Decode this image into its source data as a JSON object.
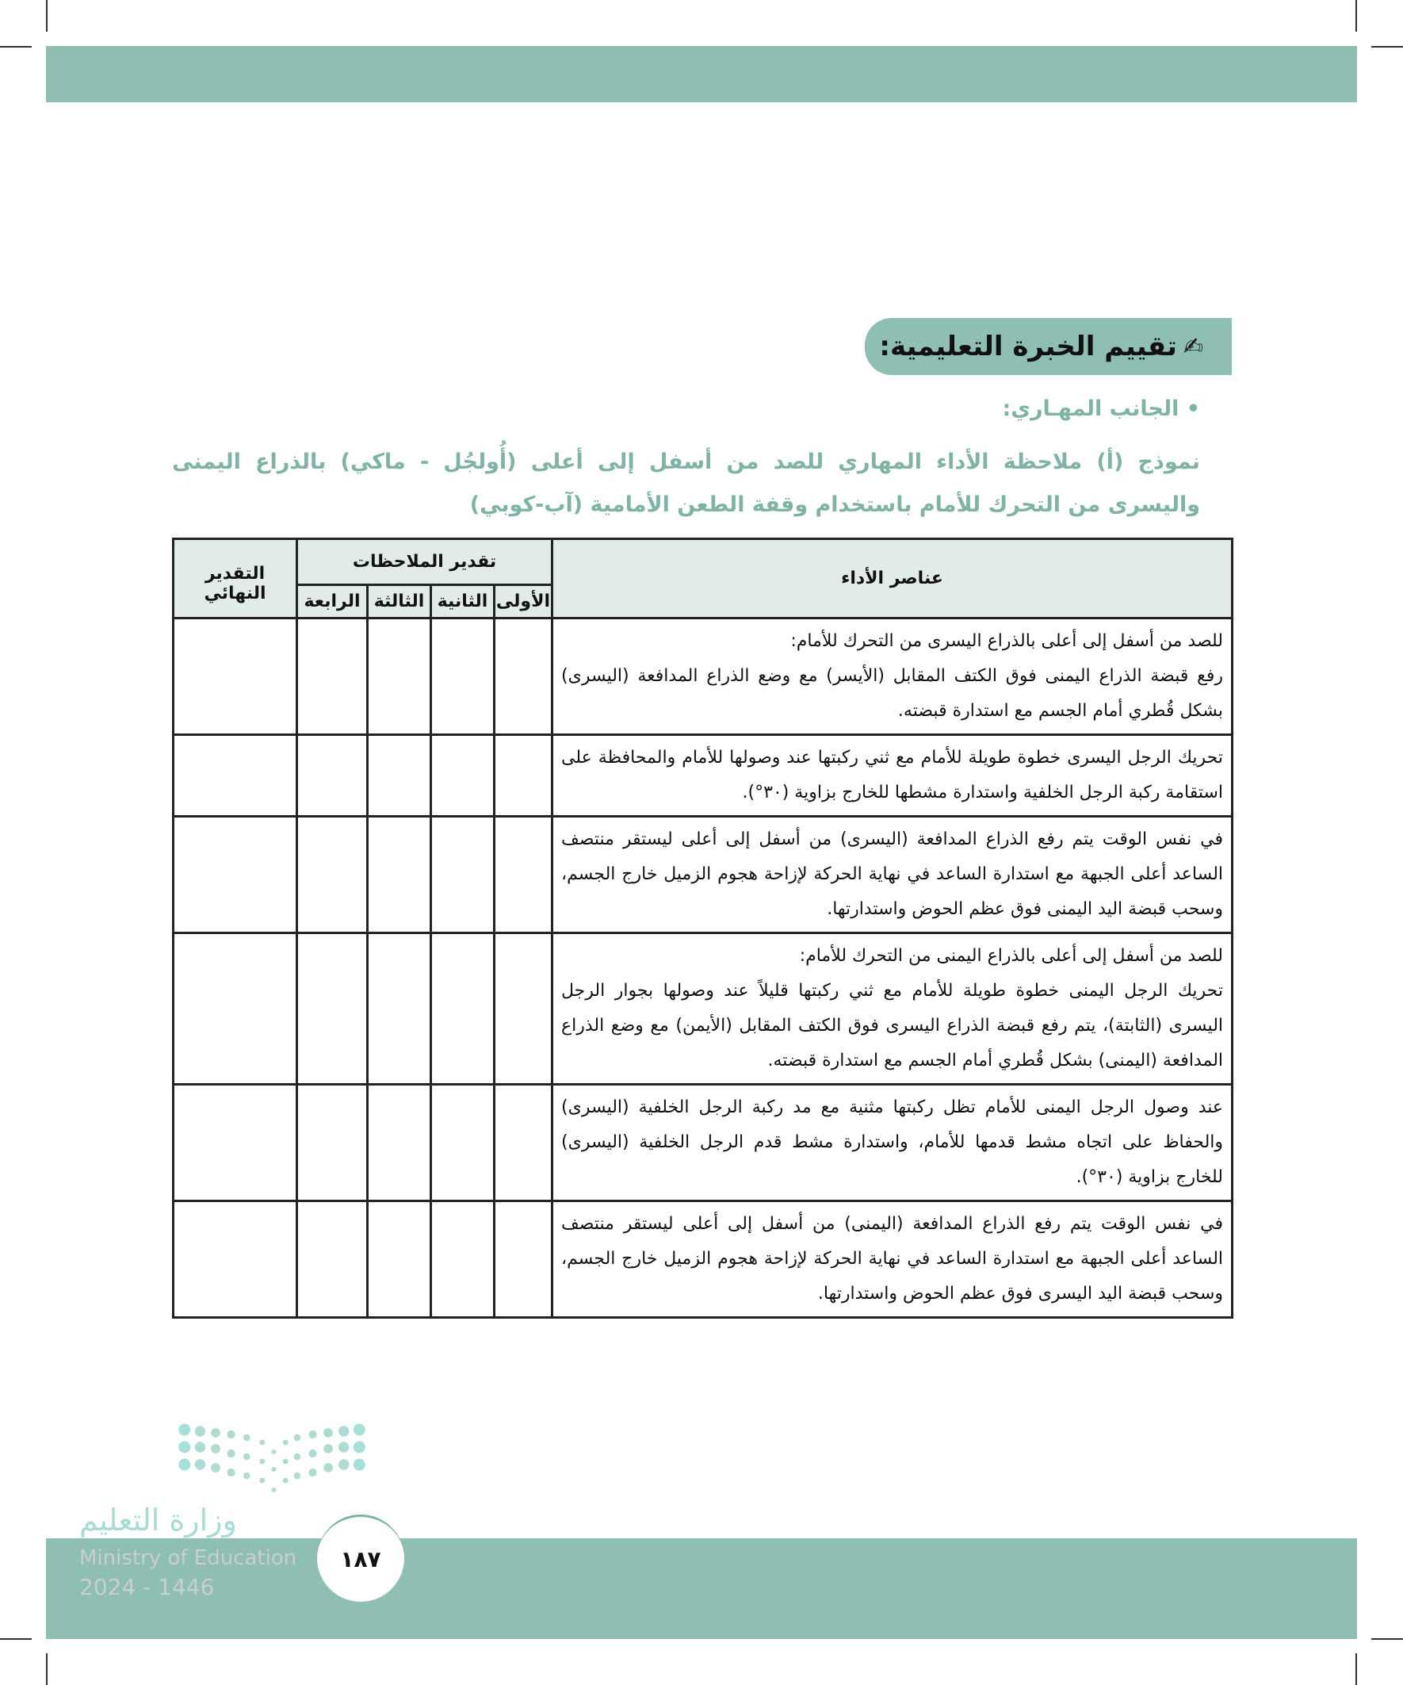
{
  "header": {
    "title": "تقييم الخبرة التعليمية:",
    "icon": "pen-writing-icon"
  },
  "section": {
    "bullet": "• الجانب المهـاري:",
    "subtitle": "نموذج (أ) ملاحظة الأداء المهاري للصد من أسفل إلى أعلى (أُولجُل - ماكي) بالذراع اليمنى واليسرى من التحرك للأمام باستخدام وقفة الطعن الأمامية (آب-كوبي)"
  },
  "table": {
    "headers": {
      "elements": "عناصر الأداء",
      "observations": "تقدير الملاحظات",
      "first": "الأولى",
      "second": "الثانية",
      "third": "الثالثة",
      "fourth": "الرابعة",
      "final": "التقدير النهائي"
    },
    "rows": [
      {
        "lines": [
          "للصد من أسفل إلى أعلى بالذراع اليسرى من التحرك للأمام:",
          "رفع قبضة الذراع اليمنى فوق الكتف المقابل (الأيسر) مع وضع الذراع المدافعة (اليسرى) بشكل قُطري أمام الجسم مع استدارة قبضته."
        ]
      },
      {
        "lines": [
          "تحريك الرجل اليسرى خطوة طويلة للأمام مع ثني ركبتها عند وصولها للأمام والمحافظة على استقامة ركبة الرجل الخلفية واستدارة مشطها للخارج بزاوية (٣٠°)."
        ]
      },
      {
        "lines": [
          "في نفس الوقت يتم رفع الذراع المدافعة (اليسرى) من أسفل إلى أعلى ليستقر منتصف الساعد أعلى الجبهة مع استدارة الساعد في نهاية الحركة لإزاحة هجوم الزميل خارج الجسم، وسحب قبضة اليد اليمنى فوق عظم الحوض واستدارتها."
        ]
      },
      {
        "lines": [
          "للصد من أسفل إلى أعلى بالذراع اليمنى من التحرك للأمام:",
          "تحريك الرجل اليمنى خطوة طويلة للأمام مع ثني ركبتها قليلاً عند وصولها بجوار الرجل اليسرى (الثابتة)، يتم رفع قبضة الذراع اليسرى فوق الكتف المقابل (الأيمن) مع وضع الذراع المدافعة (اليمنى) بشكل قُطري أمام الجسم مع استدارة قبضته."
        ]
      },
      {
        "lines": [
          "عند وصول الرجل اليمنى للأمام تظل ركبتها مثنية مع مد ركبة الرجل الخلفية (اليسرى) والحفاظ على اتجاه مشط قدمها للأمام، واستدارة مشط قدم الرجل الخلفية (اليسرى) للخارج بزاوية (٣٠°)."
        ]
      },
      {
        "lines": [
          "في نفس الوقت يتم رفع الذراع المدافعة (اليمنى) من أسفل إلى أعلى ليستقر منتصف الساعد أعلى الجبهة مع استدارة الساعد في نهاية الحركة لإزاحة هجوم الزميل خارج الجسم، وسحب قبضة اليد اليسرى فوق عظم الحوض واستدارتها."
        ]
      }
    ]
  },
  "footer": {
    "logo_ar": "وزارة التعليم",
    "logo_en": "Ministry of Education",
    "logo_year": "2024 - 1446",
    "page_number": "١٨٧"
  },
  "colors": {
    "accent": "#8fbeb2",
    "subtitle": "#7fb3a5",
    "table_header": "#e1ecea"
  }
}
